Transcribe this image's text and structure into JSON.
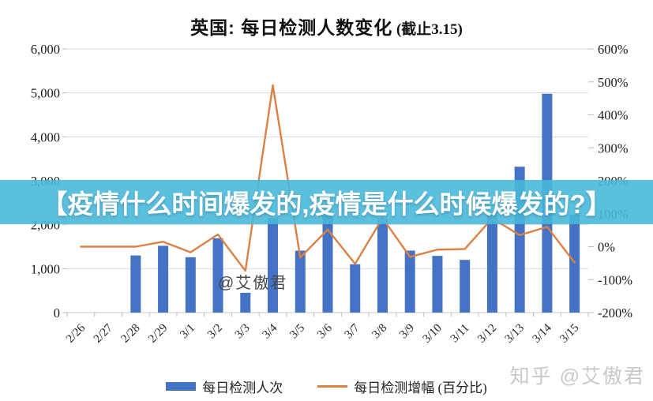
{
  "title": {
    "main": "英国: 每日检测人数变化",
    "suffix": " (截止3.15)"
  },
  "overlay_banner": {
    "text": "【疫情什么时间爆发的,疫情是什么时候爆发的?】"
  },
  "watermarks": {
    "chart": "@艾傲君",
    "footer": "知乎 @艾傲君"
  },
  "legend": [
    {
      "label": "每日检测人次",
      "type": "bar",
      "color": "#4472C4"
    },
    {
      "label": "每日检测增幅 (百分比)",
      "type": "line",
      "color": "#DC8145"
    }
  ],
  "colors": {
    "bar": "#4472C4",
    "line": "#DC8145",
    "grid": "#D9D9D9",
    "axis_line": "#C9C9C9",
    "tick": "#BDBDBD",
    "axis_text": "#1a1a1a",
    "banner_bg": "rgba(73,184,218,0.9)"
  },
  "chart_data": {
    "type": "bar+line dual-axis",
    "title": "英国: 每日检测人数变化 (截止3.15)",
    "categories": [
      "2/26",
      "2/27",
      "2/28",
      "2/29",
      "3/1",
      "3/2",
      "3/3",
      "3/4",
      "3/5",
      "3/6",
      "3/7",
      "3/8",
      "3/9",
      "3/10",
      "3/11",
      "3/12",
      "3/13",
      "3/14",
      "3/15"
    ],
    "series": [
      {
        "name": "每日检测人次",
        "type": "bar",
        "axis": "left",
        "values": [
          null,
          null,
          1300,
          1520,
          1260,
          1690,
          450,
          2150,
          1410,
          2200,
          1100,
          2130,
          1410,
          1290,
          1200,
          2280,
          3320,
          4980,
          2230
        ]
      },
      {
        "name": "每日检测增幅 (百分比)",
        "type": "line",
        "axis": "right",
        "values": [
          0,
          0,
          0,
          15,
          -17,
          37,
          -73,
          490,
          -33,
          52,
          -52,
          87,
          -31,
          -9,
          -7,
          86,
          35,
          60,
          -48
        ]
      }
    ],
    "left_axis": {
      "ticks": [
        "6,000",
        "5,000",
        "4,000",
        "3,000",
        "2,000",
        "1,000",
        "0"
      ],
      "min": 0,
      "max": 6000
    },
    "right_axis": {
      "ticks": [
        "600%",
        "500%",
        "400%",
        "300%",
        "200%",
        "100%",
        "0%",
        "-100%",
        "-200%"
      ],
      "min": -200,
      "max": 600
    },
    "grid": "horizontal",
    "legend_position": "bottom"
  }
}
